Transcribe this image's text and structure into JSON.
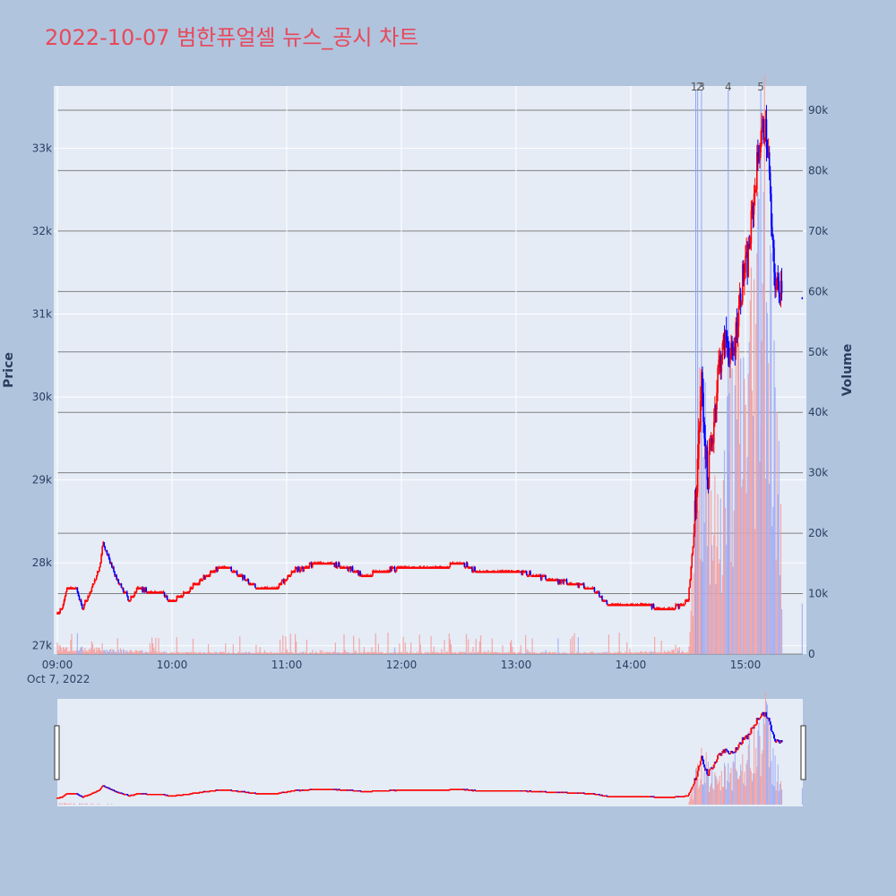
{
  "colors": {
    "background": "#b0c4de",
    "plot_bg": "#e5ecf6",
    "title": "#e8485a",
    "up": "#ff0000",
    "down": "#0000ff",
    "axis_text": "#2a3f5f",
    "volume_grid": "#808080",
    "marker_line": "#8fa5f5"
  },
  "chart_data": {
    "type": "candlestick",
    "title": "2022-10-07 범한퓨얼셀 뉴스_공시 차트",
    "ylabel": "Price",
    "y2label": "Volume",
    "ylim": [
      26900,
      33750
    ],
    "y2lim": [
      0,
      94000
    ],
    "y_ticks": [
      27000,
      28000,
      29000,
      30000,
      31000,
      32000,
      33000
    ],
    "y_tick_labels": [
      "27k",
      "28k",
      "29k",
      "30k",
      "31k",
      "32k",
      "33k"
    ],
    "y2_ticks": [
      0,
      10000,
      20000,
      30000,
      40000,
      50000,
      60000,
      70000,
      80000,
      90000
    ],
    "y2_tick_labels": [
      "0",
      "10k",
      "20k",
      "30k",
      "40k",
      "50k",
      "60k",
      "70k",
      "80k",
      "90k"
    ],
    "x_range": [
      "09:00",
      "15:30"
    ],
    "x_ticks": [
      "09:00",
      "10:00",
      "11:00",
      "12:00",
      "13:00",
      "14:00",
      "15:00"
    ],
    "x_tick_labels": [
      "09:00",
      "10:00",
      "11:00",
      "12:00",
      "13:00",
      "14:00",
      "15:00"
    ],
    "x_date_label": "Oct 7, 2022",
    "news_markers": [
      {
        "label": "1",
        "time": "14:34"
      },
      {
        "label": "2",
        "time": "14:35"
      },
      {
        "label": "3",
        "time": "14:37"
      },
      {
        "label": "4",
        "time": "14:51"
      },
      {
        "label": "5",
        "time": "15:08"
      }
    ],
    "price_anchors": [
      [
        "09:00",
        27400
      ],
      [
        "09:03",
        27500
      ],
      [
        "09:05",
        27700
      ],
      [
        "09:10",
        27700
      ],
      [
        "09:13",
        27450
      ],
      [
        "09:18",
        27700
      ],
      [
        "09:22",
        27950
      ],
      [
        "09:24",
        28250
      ],
      [
        "09:27",
        28050
      ],
      [
        "09:31",
        27800
      ],
      [
        "09:35",
        27650
      ],
      [
        "09:38",
        27550
      ],
      [
        "09:42",
        27700
      ],
      [
        "09:48",
        27650
      ],
      [
        "09:55",
        27650
      ],
      [
        "09:58",
        27550
      ],
      [
        "10:05",
        27600
      ],
      [
        "10:12",
        27750
      ],
      [
        "10:18",
        27850
      ],
      [
        "10:25",
        27950
      ],
      [
        "10:30",
        27950
      ],
      [
        "10:35",
        27850
      ],
      [
        "10:45",
        27700
      ],
      [
        "10:55",
        27700
      ],
      [
        "11:03",
        27900
      ],
      [
        "11:10",
        27950
      ],
      [
        "11:15",
        28000
      ],
      [
        "11:22",
        28000
      ],
      [
        "11:30",
        27950
      ],
      [
        "11:40",
        27850
      ],
      [
        "11:50",
        27900
      ],
      [
        "12:00",
        27950
      ],
      [
        "12:10",
        27950
      ],
      [
        "12:20",
        27950
      ],
      [
        "12:30",
        28000
      ],
      [
        "12:40",
        27900
      ],
      [
        "12:50",
        27900
      ],
      [
        "13:00",
        27900
      ],
      [
        "13:10",
        27850
      ],
      [
        "13:20",
        27800
      ],
      [
        "13:30",
        27750
      ],
      [
        "13:40",
        27700
      ],
      [
        "13:48",
        27500
      ],
      [
        "13:55",
        27500
      ],
      [
        "14:05",
        27500
      ],
      [
        "14:15",
        27450
      ],
      [
        "14:22",
        27450
      ],
      [
        "14:30",
        27550
      ],
      [
        "14:33",
        28350
      ],
      [
        "14:35",
        29250
      ],
      [
        "14:37",
        30200
      ],
      [
        "14:40",
        29000
      ],
      [
        "14:43",
        29600
      ],
      [
        "14:46",
        30400
      ],
      [
        "14:50",
        30700
      ],
      [
        "14:53",
        30400
      ],
      [
        "14:56",
        31000
      ],
      [
        "14:59",
        31500
      ],
      [
        "15:01",
        31600
      ],
      [
        "15:04",
        32300
      ],
      [
        "15:07",
        33000
      ],
      [
        "15:10",
        33300
      ],
      [
        "15:12",
        32900
      ],
      [
        "15:14",
        31800
      ],
      [
        "15:16",
        31300
      ],
      [
        "15:19",
        31400
      ]
    ],
    "volume_profile": [
      [
        "09:00",
        1200
      ],
      [
        "09:30",
        700
      ],
      [
        "10:00",
        300
      ],
      [
        "12:00",
        300
      ],
      [
        "14:00",
        300
      ],
      [
        "14:30",
        600
      ],
      [
        "14:33",
        18000
      ],
      [
        "14:37",
        50000
      ],
      [
        "14:45",
        20000
      ],
      [
        "14:52",
        40000
      ],
      [
        "15:00",
        48000
      ],
      [
        "15:05",
        60000
      ],
      [
        "15:10",
        90000
      ],
      [
        "15:15",
        45000
      ],
      [
        "15:20",
        12000
      ]
    ]
  }
}
